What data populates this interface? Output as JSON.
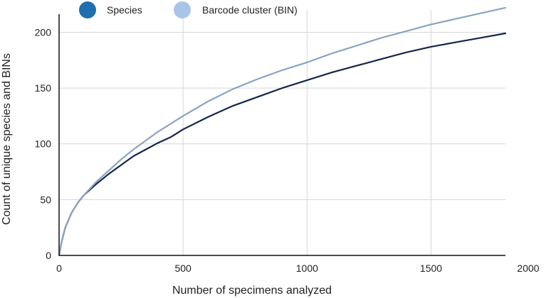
{
  "chart_data": {
    "type": "line",
    "title": "",
    "xlabel": "Number of specimens analyzed",
    "ylabel": "Count of unique species and BINs",
    "xlim": [
      0,
      1800
    ],
    "ylim": [
      0,
      220
    ],
    "x_ticks": [
      0,
      500,
      1000,
      1500,
      2000
    ],
    "y_ticks": [
      0,
      50,
      100,
      150,
      200
    ],
    "grid": {
      "vertical": true,
      "horizontal": true
    },
    "legend_position": "top-left",
    "series": [
      {
        "name": "Species",
        "legend_color": "#1f6fae",
        "line_color": "#14264a",
        "x": [
          0,
          10,
          25,
          50,
          75,
          100,
          150,
          200,
          250,
          300,
          350,
          400,
          450,
          500,
          600,
          700,
          800,
          900,
          1000,
          1100,
          1200,
          1300,
          1400,
          1500,
          1600,
          1700,
          1800
        ],
        "values": [
          0,
          12,
          25,
          38,
          47,
          54,
          64,
          73,
          81,
          89,
          95,
          101,
          106,
          113,
          124,
          134,
          142,
          150,
          157,
          164,
          170,
          176,
          182,
          187,
          191,
          195,
          199
        ]
      },
      {
        "name": "Barcode cluster (BIN)",
        "legend_color": "#a9c4e6",
        "line_color": "#8ca3c2",
        "x": [
          0,
          10,
          25,
          50,
          75,
          100,
          150,
          200,
          250,
          300,
          350,
          400,
          450,
          500,
          600,
          700,
          800,
          900,
          1000,
          1100,
          1200,
          1300,
          1400,
          1500,
          1600,
          1700,
          1800
        ],
        "values": [
          0,
          12,
          25,
          38,
          47,
          54,
          66,
          76,
          86,
          95,
          103,
          111,
          118,
          125,
          138,
          149,
          158,
          166,
          173,
          181,
          188,
          195,
          201,
          207,
          212,
          217,
          222
        ]
      }
    ]
  }
}
